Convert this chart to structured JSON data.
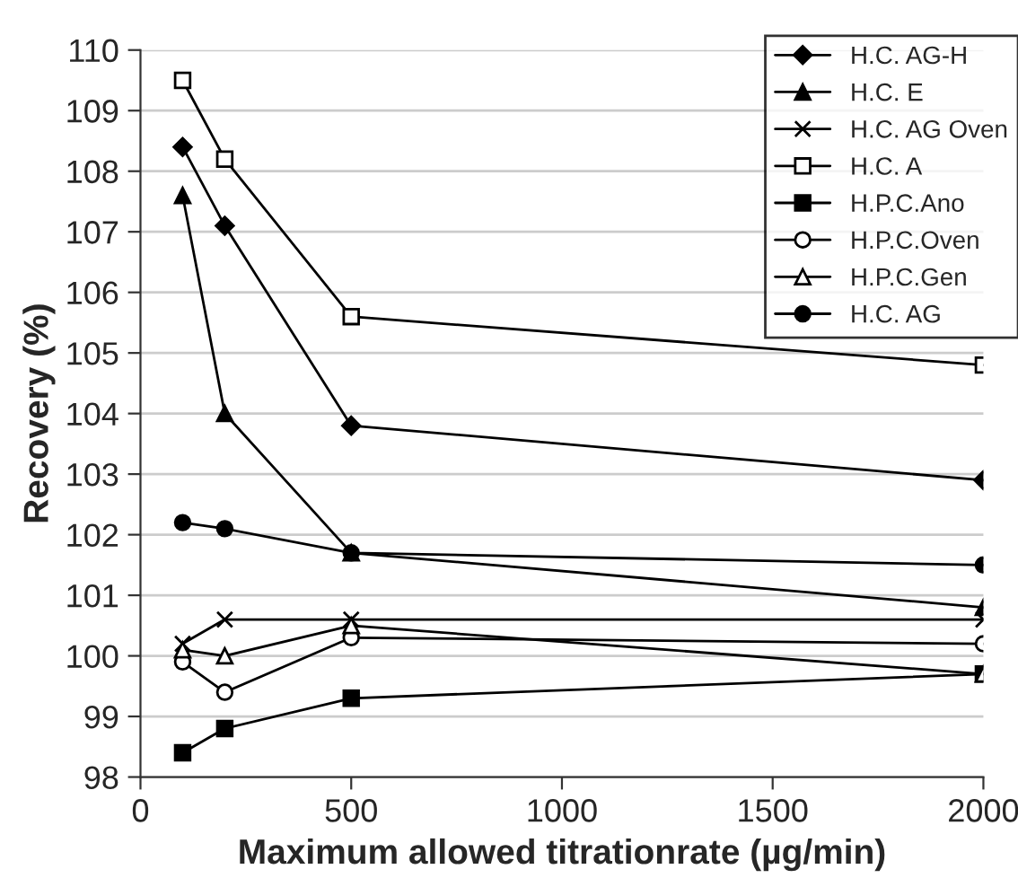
{
  "chart_data": {
    "type": "line",
    "xlabel": "Maximum allowed titrationrate (µg/min)",
    "ylabel": "Recovery (%)",
    "x": [
      100,
      200,
      500,
      2000
    ],
    "xlim": [
      0,
      2000
    ],
    "xticks": [
      0,
      500,
      1000,
      1500,
      2000
    ],
    "ylim": [
      98,
      110
    ],
    "yticks": [
      98,
      99,
      100,
      101,
      102,
      103,
      104,
      105,
      106,
      107,
      108,
      109,
      110
    ],
    "grid": "y",
    "legend": "top right",
    "line_style": "solid",
    "series": [
      {
        "name": "H.C. AG-H",
        "color": "#000000",
        "marker": "diamond",
        "values": [
          108.4,
          107.1,
          103.8,
          102.9
        ]
      },
      {
        "name": "H.C. E",
        "color": "#000000",
        "marker": "triangle",
        "values": [
          107.6,
          104.0,
          101.7,
          100.8
        ]
      },
      {
        "name": "H.C. AG Oven",
        "color": "#000000",
        "marker": "cross",
        "values": [
          100.2,
          100.6,
          100.6,
          100.6
        ]
      },
      {
        "name": "H.C. A",
        "color": "#000000",
        "marker": "square-open",
        "values": [
          109.5,
          108.2,
          105.6,
          104.8
        ]
      },
      {
        "name": "H.P.C.Ano",
        "color": "#000000",
        "marker": "square",
        "values": [
          98.4,
          98.8,
          99.3,
          99.7
        ]
      },
      {
        "name": "H.P.C.Oven",
        "color": "#000000",
        "marker": "circle-open",
        "values": [
          99.9,
          99.4,
          100.3,
          100.2
        ]
      },
      {
        "name": "H.P.C.Gen",
        "color": "#000000",
        "marker": "triangle-open",
        "values": [
          100.1,
          100.0,
          100.5,
          99.7
        ]
      },
      {
        "name": "H.C. AG",
        "color": "#000000",
        "marker": "circle",
        "values": [
          102.2,
          102.1,
          101.7,
          101.5
        ]
      }
    ]
  }
}
